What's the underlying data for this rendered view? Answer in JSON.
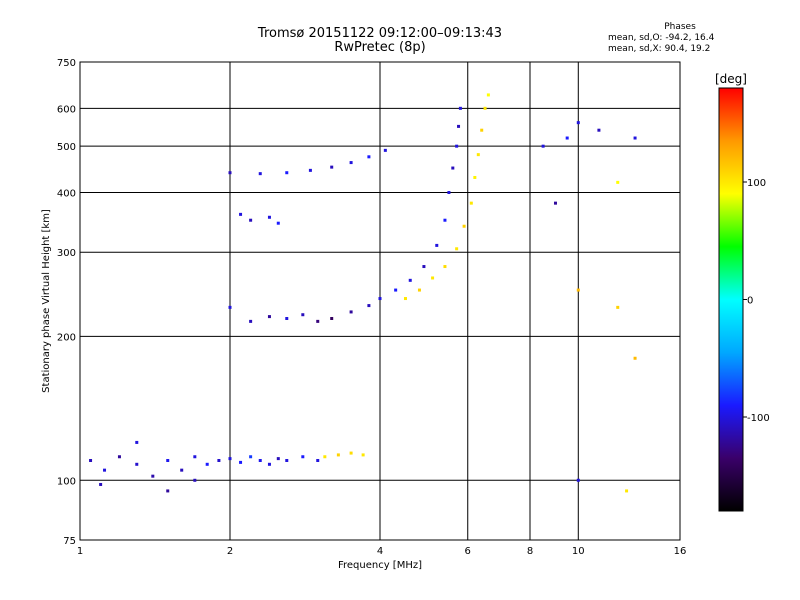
{
  "title_line1": "Tromsø 20151122 09:12:00–09:13:43",
  "title_line2": "RwPretec (8p)",
  "phase_info": {
    "heading": "Phases",
    "line_o": "mean, sd,O: -94.2, 16.4",
    "line_x": "mean, sd,X:  90.4, 19.2"
  },
  "colorbar": {
    "title": "[deg]",
    "ticks": [
      {
        "value": 100,
        "label": "100"
      },
      {
        "value": 0,
        "label": "0"
      },
      {
        "value": -100,
        "label": "-100"
      }
    ],
    "range": [
      -180,
      180
    ],
    "colors": [
      "#000000",
      "#3a006a",
      "#1a1aff",
      "#00a8ff",
      "#00ffff",
      "#00ff00",
      "#ffff00",
      "#ff9900",
      "#ff0000"
    ]
  },
  "chart_data": {
    "type": "scatter",
    "title": "Tromsø 20151122 09:12:00–09:13:43",
    "subtitle": "RwPretec (8p)",
    "xlabel": "Frequency [MHz]",
    "ylabel": "Stationary phase Virtual Height [km]",
    "xscale": "log",
    "yscale": "log",
    "xlim": [
      1,
      16
    ],
    "ylim": [
      75,
      750
    ],
    "xticks": [
      {
        "value": 1,
        "label": "1"
      },
      {
        "value": 2,
        "label": "2"
      },
      {
        "value": 4,
        "label": "4"
      },
      {
        "value": 6,
        "label": "6"
      },
      {
        "value": 8,
        "label": "8"
      },
      {
        "value": 10,
        "label": "10"
      },
      {
        "value": 16,
        "label": "16"
      }
    ],
    "yticks": [
      {
        "value": 75,
        "label": "75"
      },
      {
        "value": 100,
        "label": "100"
      },
      {
        "value": 200,
        "label": "200"
      },
      {
        "value": 300,
        "label": "300"
      },
      {
        "value": 400,
        "label": "400"
      },
      {
        "value": 500,
        "label": "500"
      },
      {
        "value": 600,
        "label": "600"
      },
      {
        "value": 750,
        "label": "750"
      }
    ],
    "grid": true,
    "color_scale": "phase [deg]",
    "series": [
      {
        "points": [
          [
            1.05,
            110,
            -110
          ],
          [
            1.12,
            105,
            -100
          ],
          [
            1.2,
            112,
            -120
          ],
          [
            1.3,
            108,
            -105
          ],
          [
            1.4,
            102,
            -115
          ],
          [
            1.5,
            110,
            -95
          ],
          [
            1.6,
            105,
            -110
          ],
          [
            1.7,
            112,
            -100
          ],
          [
            1.8,
            108,
            -90
          ],
          [
            1.9,
            110,
            -105
          ],
          [
            2.0,
            111,
            -100
          ],
          [
            2.1,
            109,
            -90
          ],
          [
            2.2,
            112,
            -80
          ],
          [
            2.3,
            110,
            -95
          ],
          [
            2.4,
            108,
            -100
          ],
          [
            2.5,
            111,
            -110
          ],
          [
            2.6,
            110,
            -100
          ],
          [
            2.8,
            112,
            -90
          ],
          [
            3.0,
            110,
            -100
          ],
          [
            1.1,
            98,
            -110
          ],
          [
            1.3,
            120,
            -100
          ],
          [
            1.5,
            95,
            -120
          ],
          [
            1.7,
            100,
            -110
          ]
        ]
      },
      {
        "points": [
          [
            2.0,
            230,
            -100
          ],
          [
            2.2,
            215,
            -110
          ],
          [
            2.4,
            220,
            -120
          ],
          [
            2.6,
            218,
            -100
          ],
          [
            2.8,
            222,
            -110
          ],
          [
            3.0,
            215,
            -130
          ],
          [
            3.2,
            218,
            -140
          ],
          [
            3.5,
            225,
            -120
          ],
          [
            3.8,
            232,
            -110
          ],
          [
            4.0,
            240,
            -100
          ],
          [
            4.3,
            250,
            -90
          ],
          [
            4.6,
            262,
            -100
          ],
          [
            4.9,
            280,
            -110
          ],
          [
            5.2,
            310,
            -100
          ],
          [
            5.4,
            350,
            -90
          ],
          [
            5.5,
            400,
            -100
          ],
          [
            5.6,
            450,
            -110
          ],
          [
            5.7,
            500,
            -100
          ],
          [
            5.75,
            550,
            -110
          ],
          [
            5.8,
            600,
            -100
          ]
        ]
      },
      {
        "points": [
          [
            2.0,
            440,
            -110
          ],
          [
            2.3,
            438,
            -100
          ],
          [
            2.6,
            440,
            -90
          ],
          [
            2.9,
            445,
            -100
          ],
          [
            3.2,
            452,
            -110
          ],
          [
            3.5,
            462,
            -100
          ],
          [
            3.8,
            475,
            -90
          ],
          [
            4.1,
            490,
            -100
          ]
        ]
      },
      {
        "points": [
          [
            2.1,
            360,
            -100
          ],
          [
            2.2,
            350,
            -110
          ],
          [
            2.4,
            355,
            -100
          ],
          [
            2.5,
            345,
            -90
          ]
        ]
      },
      {
        "points": [
          [
            4.5,
            240,
            100
          ],
          [
            4.8,
            250,
            110
          ],
          [
            5.1,
            265,
            100
          ],
          [
            5.4,
            280,
            105
          ],
          [
            5.7,
            305,
            100
          ],
          [
            5.9,
            340,
            110
          ],
          [
            6.1,
            380,
            100
          ],
          [
            6.2,
            430,
            95
          ],
          [
            6.3,
            480,
            100
          ],
          [
            6.4,
            540,
            110
          ],
          [
            6.5,
            600,
            100
          ],
          [
            6.6,
            640,
            90
          ]
        ]
      },
      {
        "points": [
          [
            3.1,
            112,
            100
          ],
          [
            3.3,
            113,
            110
          ],
          [
            3.5,
            114,
            105
          ],
          [
            3.7,
            113,
            100
          ]
        ]
      },
      {
        "points": [
          [
            8.5,
            500,
            -100
          ],
          [
            9.5,
            520,
            -90
          ],
          [
            10.0,
            560,
            -100
          ],
          [
            11.0,
            540,
            -110
          ],
          [
            13.0,
            520,
            -100
          ],
          [
            10.0,
            250,
            120
          ],
          [
            12.0,
            230,
            110
          ],
          [
            13.0,
            180,
            120
          ],
          [
            10.0,
            100,
            -100
          ],
          [
            12.5,
            95,
            100
          ],
          [
            9.0,
            380,
            -120
          ],
          [
            12.0,
            420,
            90
          ]
        ]
      }
    ]
  }
}
